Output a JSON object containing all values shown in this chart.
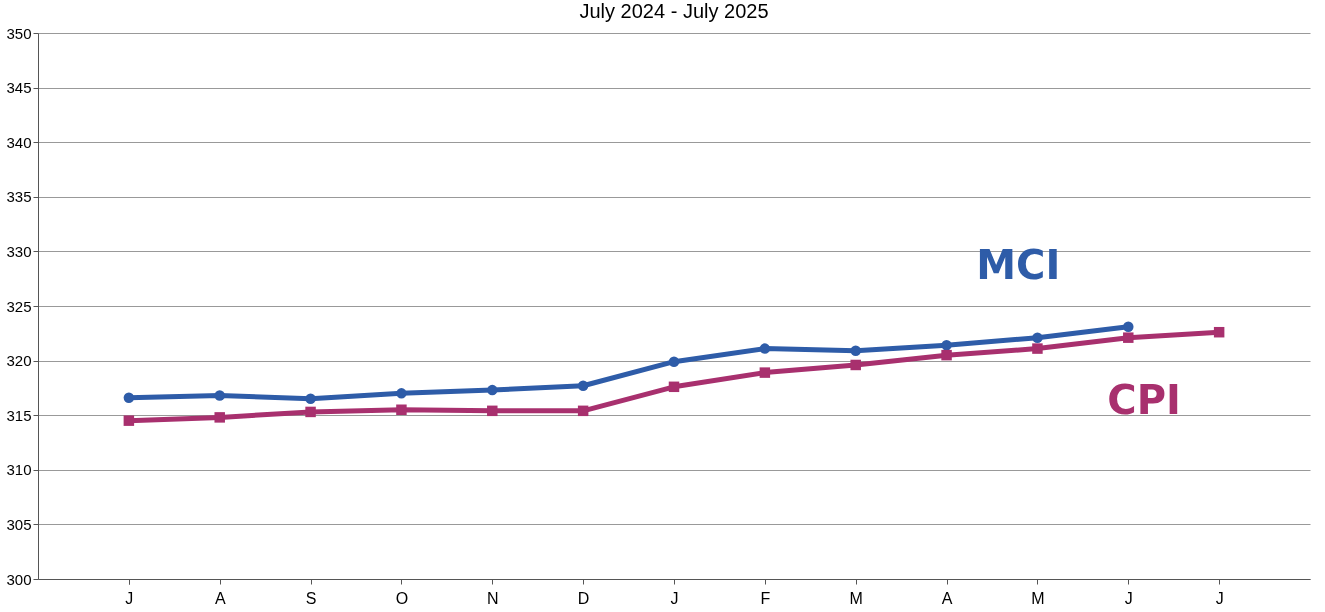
{
  "chart_data": {
    "type": "line",
    "title": "July 2024 - July 2025",
    "categories": [
      "J",
      "A",
      "S",
      "O",
      "N",
      "D",
      "J",
      "F",
      "M",
      "A",
      "M",
      "J",
      "J"
    ],
    "series": [
      {
        "name": "MCI",
        "color": "#2e5ca8",
        "marker": "circle",
        "values": [
          316.6,
          316.8,
          316.5,
          317.0,
          317.3,
          317.7,
          319.9,
          321.1,
          320.9,
          321.4,
          322.1,
          323.1,
          null
        ]
      },
      {
        "name": "CPI",
        "color": "#a8306e",
        "marker": "square",
        "values": [
          314.5,
          314.8,
          315.3,
          315.5,
          315.4,
          315.4,
          317.6,
          318.9,
          319.6,
          320.5,
          321.1,
          322.1,
          322.6
        ]
      }
    ],
    "ylim": [
      300,
      350
    ],
    "yticks": [
      300,
      305,
      310,
      315,
      320,
      325,
      330,
      335,
      340,
      345,
      350
    ],
    "grid": "y"
  }
}
